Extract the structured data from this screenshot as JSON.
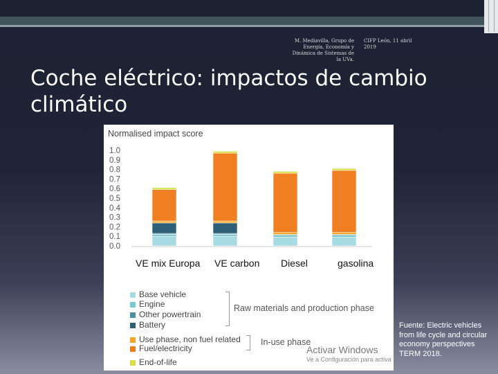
{
  "slide": {
    "header_left": "M. Mediavilla, Grupo de Energía, Economía y Dinámica de Sistemas de la UVa.",
    "header_right": "CIFP León, 11 abril 2019",
    "title": "Coche eléctrico: impactos de cambio climático",
    "source": "Fuente: Electric vehicles from life cycle and circular economy perspectives TERM 2018.",
    "watermark": "Activar Windows",
    "watermark_sub": "Ve a Configuración para activa"
  },
  "chart_data": {
    "type": "bar",
    "stacked": true,
    "title": "Normalised impact score",
    "ylim": [
      0,
      1.0
    ],
    "yticks": [
      "0.0",
      "0.1",
      "0.2",
      "0.3",
      "0.4",
      "0.5",
      "0.6",
      "0.7",
      "0.8",
      "0.9",
      "1.0"
    ],
    "categories": [
      "VE mix Europa",
      "VE carbon",
      "Diesel",
      "gasolina"
    ],
    "series": [
      {
        "name": "Base vehicle",
        "color": "#a6dbe3",
        "values": [
          0.1,
          0.1,
          0.09,
          0.09
        ]
      },
      {
        "name": "Engine",
        "color": "#7cc6cf",
        "values": [
          0.02,
          0.02,
          0.02,
          0.02
        ]
      },
      {
        "name": "Other powertrain",
        "color": "#4f8fa3",
        "values": [
          0.01,
          0.01,
          0.01,
          0.01
        ]
      },
      {
        "name": "Battery",
        "color": "#2e5f76",
        "values": [
          0.11,
          0.11,
          0.0,
          0.0
        ]
      },
      {
        "name": "Use phase, non fuel related",
        "color": "#f5a623",
        "values": [
          0.02,
          0.02,
          0.02,
          0.02
        ]
      },
      {
        "name": "Fuel/electricity",
        "color": "#f07f22",
        "values": [
          0.33,
          0.71,
          0.62,
          0.65
        ]
      },
      {
        "name": "End-of-life",
        "color": "#d8e04a",
        "values": [
          0.02,
          0.02,
          0.02,
          0.02
        ]
      }
    ],
    "legend_groups": [
      {
        "label": "Raw materials and production phase"
      },
      {
        "label": "In-use phase"
      }
    ],
    "grid": false,
    "legend": "bottom"
  }
}
